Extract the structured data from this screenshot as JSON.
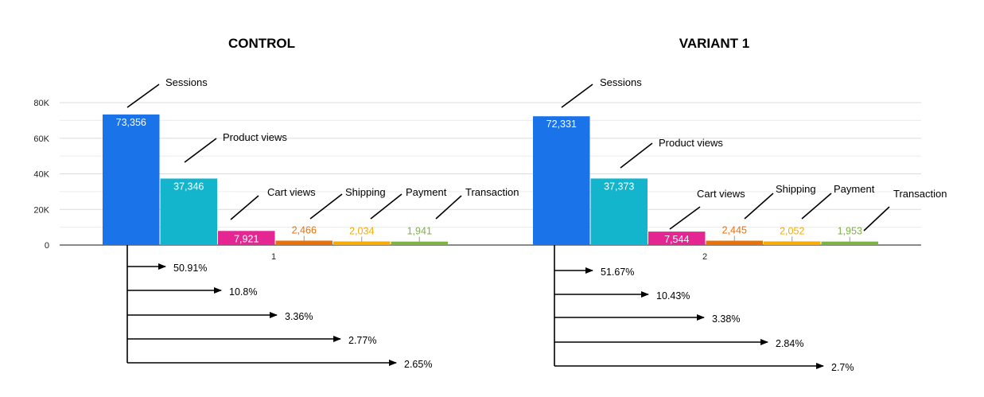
{
  "panels": [
    {
      "title": "CONTROL",
      "category": "1",
      "conversion_rates": [
        "50.91%",
        "10.8%",
        "3.36%",
        "2.77%",
        "2.65%"
      ]
    },
    {
      "title": "VARIANT 1",
      "category": "2",
      "conversion_rates": [
        "51.67%",
        "10.43%",
        "3.38%",
        "2.84%",
        "2.7%"
      ]
    }
  ],
  "chart_data": {
    "type": "bar",
    "categories": [
      "1",
      "2"
    ],
    "ylim": [
      0,
      80000
    ],
    "y_ticks": [
      "80K",
      "60K",
      "40K",
      "20K",
      "0"
    ],
    "y_tick_values": [
      80000,
      60000,
      40000,
      20000,
      0
    ],
    "grid": true,
    "series": [
      {
        "name": "Sessions",
        "color": "#1a73e8",
        "values": [
          73356,
          72331
        ],
        "labels": [
          "73,356",
          "72,331"
        ]
      },
      {
        "name": "Product views",
        "color": "#12b5cb",
        "values": [
          37346,
          37373
        ],
        "labels": [
          "37,346",
          "37,373"
        ]
      },
      {
        "name": "Cart views",
        "color": "#e52592",
        "values": [
          7921,
          7544
        ],
        "labels": [
          "7,921",
          "7,544"
        ]
      },
      {
        "name": "Shipping",
        "color": "#e8710a",
        "values": [
          2466,
          2445
        ],
        "labels": [
          "2,466",
          "2,445"
        ]
      },
      {
        "name": "Payment",
        "color": "#f9ab00",
        "values": [
          2034,
          2052
        ],
        "labels": [
          "2,034",
          "2,052"
        ]
      },
      {
        "name": "Transaction",
        "color": "#7cb342",
        "values": [
          1941,
          1953
        ],
        "labels": [
          "1,941",
          "1,953"
        ]
      }
    ]
  }
}
